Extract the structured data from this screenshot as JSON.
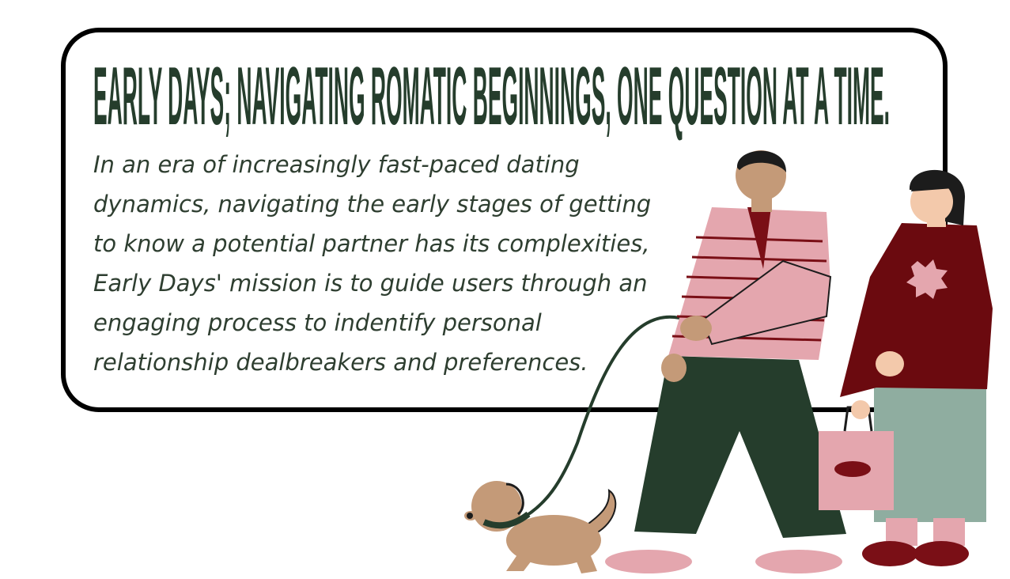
{
  "header": {
    "title": "EARLY DAYS; NAVIGATING ROMATIC BEGINNINGS, ONE QUESTION AT A TIME."
  },
  "body": {
    "lines": [
      "In an era of increasingly fast-paced dating",
      "dynamics, navigating the early stages of getting",
      "to know a potential partner has its complexities,",
      "Early Days' mission is to guide users through an",
      "engaging process to indentify personal",
      "relationship dealbreakers and preferences."
    ]
  }
}
